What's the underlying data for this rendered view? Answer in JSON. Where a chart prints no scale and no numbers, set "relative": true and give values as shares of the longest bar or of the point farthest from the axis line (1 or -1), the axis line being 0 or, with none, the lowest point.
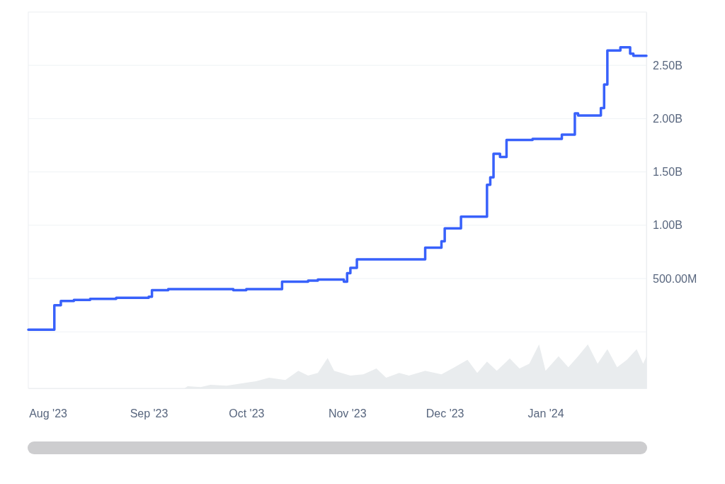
{
  "chart_data": [
    {
      "type": "step",
      "xlim": [
        "2023-07-26",
        "2024-02-01"
      ],
      "xticks": [
        {
          "value": "2023-08-01",
          "label": "Aug '23"
        },
        {
          "value": "2023-09-01",
          "label": "Sep '23"
        },
        {
          "value": "2023-10-01",
          "label": "Oct '23"
        },
        {
          "value": "2023-11-01",
          "label": "Nov '23"
        },
        {
          "value": "2023-12-01",
          "label": "Dec '23"
        },
        {
          "value": "2024-01-01",
          "label": "Jan '24"
        }
      ],
      "ylim": [
        -530000000,
        3000000000
      ],
      "yticks": [
        {
          "value": 0,
          "label": null
        },
        {
          "value": 500000000,
          "label": "500.00M"
        },
        {
          "value": 1000000000,
          "label": "1.00B"
        },
        {
          "value": 1500000000,
          "label": "1.50B"
        },
        {
          "value": 2000000000,
          "label": "2.00B"
        },
        {
          "value": 2500000000,
          "label": "2.50B"
        }
      ],
      "grid": "y",
      "line_style": "solid",
      "series": [
        {
          "color": "#3861fb",
          "x": [
            "2023-07-26",
            "2023-08-02",
            "2023-08-03",
            "2023-08-05",
            "2023-08-09",
            "2023-08-14",
            "2023-08-22",
            "2023-09-01",
            "2023-09-02",
            "2023-09-07",
            "2023-09-27",
            "2023-10-01",
            "2023-10-12",
            "2023-10-20",
            "2023-10-23",
            "2023-10-31",
            "2023-11-01",
            "2023-11-02",
            "2023-11-04",
            "2023-11-25",
            "2023-11-30",
            "2023-12-01",
            "2023-12-06",
            "2023-12-14",
            "2023-12-15",
            "2023-12-16",
            "2023-12-18",
            "2023-12-20",
            "2023-12-28",
            "2024-01-06",
            "2024-01-10",
            "2024-01-11",
            "2024-01-18",
            "2024-01-19",
            "2024-01-20",
            "2024-01-24",
            "2024-01-27",
            "2024-01-28",
            "2024-02-01"
          ],
          "values": [
            20000000,
            20000000,
            250000000,
            290000000,
            300000000,
            310000000,
            320000000,
            330000000,
            390000000,
            400000000,
            390000000,
            400000000,
            470000000,
            480000000,
            490000000,
            470000000,
            550000000,
            600000000,
            680000000,
            790000000,
            850000000,
            970000000,
            1080000000,
            1380000000,
            1450000000,
            1670000000,
            1640000000,
            1800000000,
            1810000000,
            1850000000,
            2050000000,
            2030000000,
            2100000000,
            2320000000,
            2640000000,
            2670000000,
            2610000000,
            2590000000,
            2590000000
          ]
        }
      ]
    },
    {
      "type": "area",
      "relative": true,
      "xlim": [
        "2023-07-26",
        "2024-02-01"
      ],
      "series": [
        {
          "color": "#e9ecee",
          "x": [
            "2023-09-12",
            "2023-09-13",
            "2023-09-17",
            "2023-09-20",
            "2023-09-25",
            "2023-10-01",
            "2023-10-04",
            "2023-10-08",
            "2023-10-13",
            "2023-10-17",
            "2023-10-20",
            "2023-10-23",
            "2023-10-26",
            "2023-10-28",
            "2023-11-02",
            "2023-11-06",
            "2023-11-10",
            "2023-11-13",
            "2023-11-17",
            "2023-11-20",
            "2023-11-25",
            "2023-11-30",
            "2023-12-04",
            "2023-12-08",
            "2023-12-11",
            "2023-12-14",
            "2023-12-17",
            "2023-12-21",
            "2023-12-24",
            "2023-12-27",
            "2023-12-30",
            "2024-01-01",
            "2024-01-05",
            "2024-01-08",
            "2024-01-11",
            "2024-01-14",
            "2024-01-17",
            "2024-01-20",
            "2024-01-23",
            "2024-01-26",
            "2024-01-29",
            "2024-01-31",
            "2024-02-01"
          ],
          "values": [
            0,
            0.05,
            0.03,
            0.08,
            0.06,
            0.13,
            0.16,
            0.24,
            0.19,
            0.4,
            0.29,
            0.35,
            0.69,
            0.4,
            0.29,
            0.32,
            0.45,
            0.24,
            0.35,
            0.29,
            0.4,
            0.32,
            0.48,
            0.65,
            0.35,
            0.61,
            0.4,
            0.68,
            0.45,
            0.56,
            1,
            0.4,
            0.73,
            0.48,
            0.73,
            1,
            0.56,
            0.89,
            0.48,
            0.65,
            0.89,
            0.56,
            0.73
          ]
        }
      ]
    }
  ]
}
